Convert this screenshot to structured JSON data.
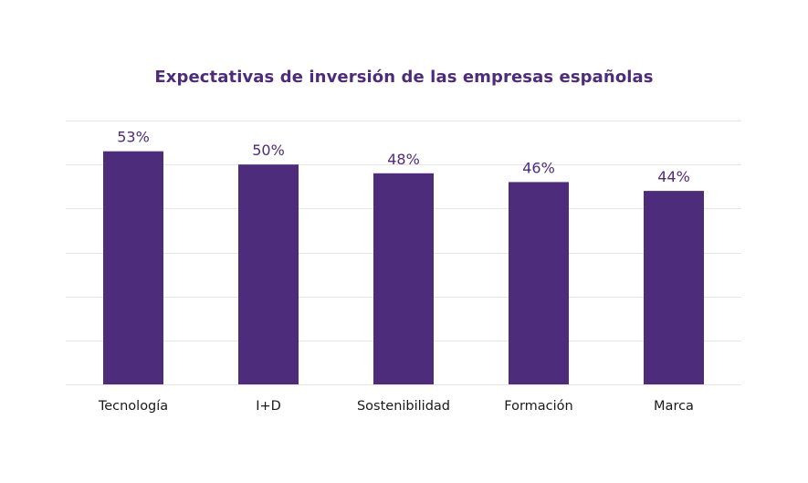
{
  "chart_data": {
    "type": "bar",
    "title": "Expectativas de inversión de las empresas españolas",
    "categories": [
      "Tecnología",
      "I+D",
      "Sostenibilidad",
      "Formación",
      "Marca"
    ],
    "values": [
      53,
      50,
      48,
      46,
      44
    ],
    "value_labels": [
      "53%",
      "50%",
      "48%",
      "46%",
      "44%"
    ],
    "ylim": [
      0,
      60
    ],
    "grid": true,
    "bar_color": "#4d2c7c",
    "label_color": "#4d2c7c"
  }
}
